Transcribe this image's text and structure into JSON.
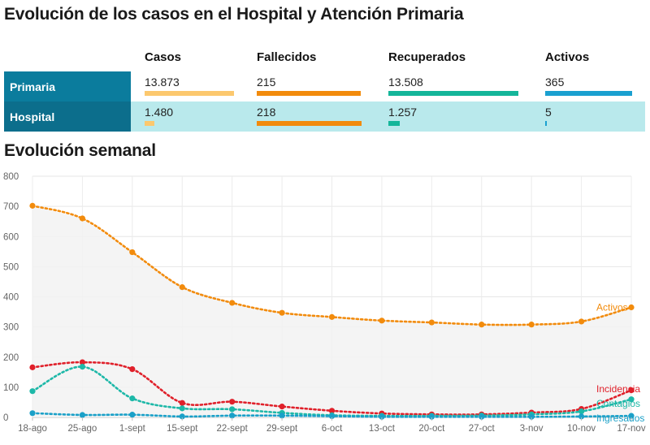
{
  "title": "Evolución de los casos en el Hospital y Atención Primaria",
  "subtitle": "Evolución semanal",
  "table": {
    "columns": [
      "Casos",
      "Fallecidos",
      "Recuperados",
      "Activos"
    ],
    "column_colors": [
      "#fcc86e",
      "#f28b0c",
      "#14b69a",
      "#1aa0d0"
    ],
    "rows": [
      {
        "label": "Primaria",
        "values": [
          "13.873",
          "215",
          "13.508",
          "365"
        ],
        "fill": [
          1.0,
          0.99,
          1.0,
          1.0
        ]
      },
      {
        "label": "Hospital",
        "values": [
          "1.480",
          "218",
          "1.257",
          "5"
        ],
        "fill": [
          0.11,
          1.0,
          0.09,
          0.014
        ]
      }
    ]
  },
  "chart_data": {
    "type": "line",
    "categories": [
      "18-ago",
      "25-ago",
      "1-sept",
      "15-sept",
      "22-sept",
      "29-sept",
      "6-oct",
      "13-oct",
      "20-oct",
      "27-oct",
      "3-nov",
      "10-nov",
      "17-nov"
    ],
    "yticks": [
      "0",
      "100",
      "200",
      "300",
      "400",
      "500",
      "600",
      "700",
      "800"
    ],
    "ylim": [
      0,
      800
    ],
    "grid": true,
    "series": [
      {
        "name": "Activos",
        "color": "#f28b0c",
        "area": true,
        "values": [
          702,
          660,
          548,
          432,
          380,
          347,
          333,
          321,
          315,
          308,
          308,
          318,
          365
        ]
      },
      {
        "name": "Incidencia",
        "color": "#e0202a",
        "values": [
          166,
          183,
          160,
          48,
          52,
          36,
          22,
          13,
          10,
          10,
          16,
          28,
          90
        ]
      },
      {
        "name": "Contagios",
        "color": "#1db8a8",
        "values": [
          87,
          168,
          63,
          30,
          27,
          15,
          7,
          5,
          5,
          6,
          10,
          20,
          60
        ]
      },
      {
        "name": "Ingresados",
        "color": "#1aa0c8",
        "values": [
          14,
          8,
          9,
          3,
          6,
          6,
          4,
          2,
          2,
          2,
          2,
          3,
          5
        ]
      }
    ]
  }
}
